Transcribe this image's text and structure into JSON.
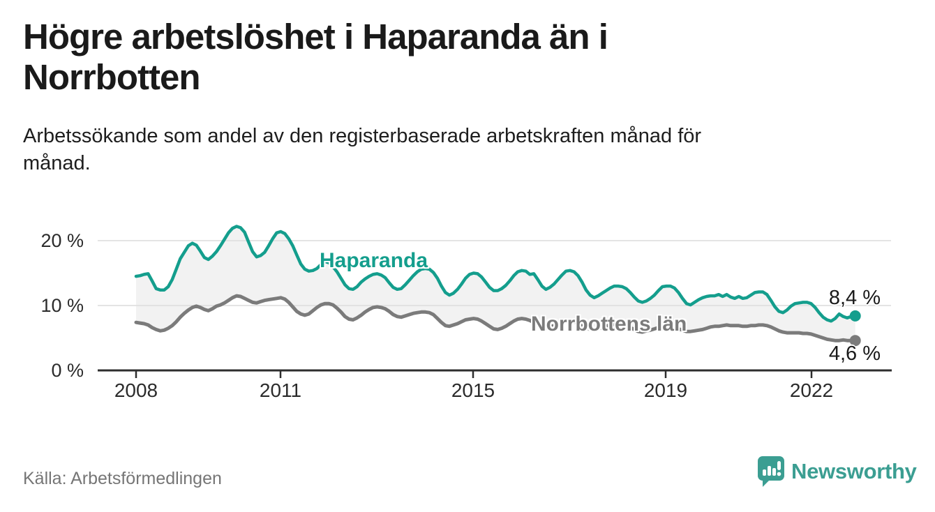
{
  "header": {
    "title": "Högre arbetslöshet i Haparanda än i\nNorrbotten",
    "subtitle": "Arbetssökande som andel av den registerbaserade arbetskraften månad för\nmånad."
  },
  "chart_data": {
    "type": "line",
    "title": "Högre arbetslöshet i Haparanda än i Norrbotten",
    "xlabel": "",
    "ylabel": "Arbetssökande som andel av den registerbaserade arbetskraften",
    "x_unit": "month",
    "x_range": [
      "2008-01",
      "2022-12"
    ],
    "ylim": [
      0,
      24
    ],
    "grid": "horizontal",
    "y_gridlines_pct": [
      20,
      10
    ],
    "y_tick_labels": [
      "20 %",
      "10 %",
      "0 %"
    ],
    "x_tick_years": [
      2008,
      2011,
      2015,
      2019,
      2022
    ],
    "x_tick_labels": [
      "2008",
      "2011",
      "2015",
      "2019",
      "2022"
    ],
    "area_between_series": true,
    "series": [
      {
        "name": "Haparanda",
        "color": "#149e8d",
        "end_label": "8,4 %",
        "end_value": 8.4,
        "values": [
          14.5,
          14.6,
          14.8,
          14.9,
          13.8,
          12.6,
          12.4,
          12.4,
          12.9,
          14.0,
          15.6,
          17.2,
          18.2,
          19.2,
          19.6,
          19.3,
          18.4,
          17.4,
          17.1,
          17.6,
          18.3,
          19.2,
          20.2,
          21.2,
          21.9,
          22.2,
          22.0,
          21.3,
          19.8,
          18.3,
          17.5,
          17.7,
          18.2,
          19.2,
          20.3,
          21.2,
          21.4,
          21.1,
          20.3,
          19.2,
          17.8,
          16.4,
          15.6,
          15.3,
          15.4,
          15.7,
          16.3,
          16.8,
          16.6,
          16.0,
          15.2,
          14.2,
          13.2,
          12.6,
          12.5,
          12.9,
          13.6,
          14.1,
          14.5,
          14.8,
          14.9,
          14.7,
          14.3,
          13.5,
          12.8,
          12.5,
          12.6,
          13.2,
          13.9,
          14.6,
          15.2,
          15.6,
          15.7,
          15.6,
          15.1,
          14.2,
          13.0,
          12.0,
          11.6,
          11.9,
          12.5,
          13.3,
          14.2,
          14.8,
          15.0,
          14.9,
          14.4,
          13.6,
          12.8,
          12.3,
          12.3,
          12.6,
          13.1,
          13.8,
          14.6,
          15.2,
          15.4,
          15.3,
          14.8,
          14.9,
          14.0,
          13.0,
          12.5,
          12.8,
          13.3,
          14.0,
          14.7,
          15.3,
          15.4,
          15.2,
          14.6,
          13.6,
          12.4,
          11.6,
          11.2,
          11.5,
          11.9,
          12.3,
          12.7,
          13.0,
          13.0,
          12.9,
          12.6,
          12.0,
          11.3,
          10.7,
          10.5,
          10.7,
          11.1,
          11.6,
          12.3,
          12.9,
          13.0,
          13.0,
          12.7,
          12.0,
          11.1,
          10.3,
          10.1,
          10.5,
          10.9,
          11.2,
          11.4,
          11.5,
          11.5,
          11.7,
          11.4,
          11.7,
          11.3,
          11.1,
          11.4,
          11.1,
          11.2,
          11.6,
          12.0,
          12.1,
          12.1,
          11.7,
          10.8,
          9.8,
          9.1,
          8.9,
          9.3,
          9.9,
          10.3,
          10.4,
          10.5,
          10.5,
          10.3,
          9.7,
          8.9,
          8.2,
          7.8,
          7.6,
          8.0,
          8.7,
          8.3,
          8.1,
          8.3,
          8.4
        ]
      },
      {
        "name": "Norrbottens län",
        "color": "#7b7b7b",
        "end_label": "4,6 %",
        "end_value": 4.6,
        "values": [
          7.4,
          7.3,
          7.2,
          7.0,
          6.6,
          6.3,
          6.1,
          6.2,
          6.5,
          6.9,
          7.5,
          8.2,
          8.8,
          9.3,
          9.7,
          9.9,
          9.7,
          9.4,
          9.2,
          9.5,
          9.9,
          10.1,
          10.4,
          10.8,
          11.2,
          11.5,
          11.4,
          11.1,
          10.8,
          10.5,
          10.4,
          10.6,
          10.8,
          10.9,
          11.0,
          11.1,
          11.2,
          11.0,
          10.5,
          9.8,
          9.1,
          8.7,
          8.5,
          8.7,
          9.2,
          9.7,
          10.1,
          10.3,
          10.3,
          10.1,
          9.6,
          9.0,
          8.3,
          7.9,
          7.8,
          8.1,
          8.5,
          9.0,
          9.4,
          9.7,
          9.8,
          9.7,
          9.5,
          9.1,
          8.6,
          8.3,
          8.2,
          8.4,
          8.6,
          8.8,
          8.9,
          9.0,
          9.0,
          8.9,
          8.6,
          8.0,
          7.4,
          6.9,
          6.8,
          7.0,
          7.2,
          7.5,
          7.8,
          7.9,
          8.0,
          7.9,
          7.6,
          7.2,
          6.8,
          6.4,
          6.3,
          6.5,
          6.8,
          7.2,
          7.6,
          7.9,
          8.0,
          7.9,
          7.7,
          7.4,
          7.0,
          6.7,
          6.5,
          6.7,
          6.9,
          7.1,
          7.3,
          7.5,
          7.6,
          7.5,
          7.3,
          7.0,
          6.6,
          6.3,
          6.2,
          6.4,
          6.6,
          6.8,
          7.0,
          7.1,
          7.2,
          7.1,
          6.9,
          6.6,
          6.3,
          6.0,
          5.9,
          6.1,
          6.2,
          6.4,
          6.6,
          6.8,
          6.9,
          6.8,
          6.6,
          6.4,
          6.2,
          6.0,
          6.0,
          6.1,
          6.2,
          6.3,
          6.5,
          6.7,
          6.8,
          6.8,
          6.9,
          7.0,
          6.9,
          6.9,
          6.9,
          6.8,
          6.8,
          6.9,
          6.9,
          7.0,
          7.0,
          6.9,
          6.7,
          6.4,
          6.1,
          5.9,
          5.8,
          5.8,
          5.8,
          5.8,
          5.7,
          5.7,
          5.6,
          5.4,
          5.2,
          5.0,
          4.8,
          4.7,
          4.6,
          4.6,
          4.7,
          4.6,
          4.6,
          4.6
        ]
      }
    ]
  },
  "colors": {
    "accent_teal": "#149e8d",
    "line_gray": "#7b7b7b",
    "area_fill": "#f2f2f2",
    "gridline": "#dcdcdc",
    "axis": "#2e2e2e",
    "text_dark": "#1a1a1a",
    "text_muted": "#767676",
    "brand_teal": "#3b9e92"
  },
  "footer": {
    "source": "Källa: Arbetsförmedlingen",
    "brand": "Newsworthy"
  }
}
